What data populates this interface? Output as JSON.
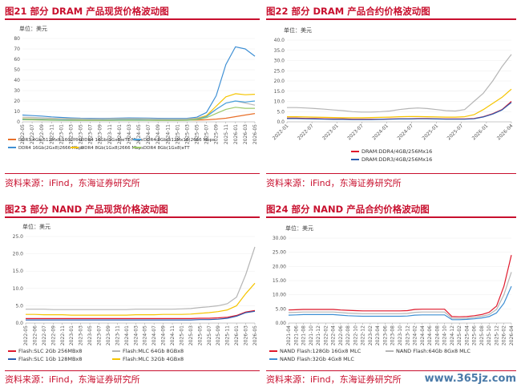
{
  "panels": [
    {
      "title": "图21 部分 DRAM 产品现货价格波动图",
      "source": "资料来源：iFind，东海证券研究所",
      "chart_data": {
        "type": "line",
        "unit": "单位：美元",
        "ylim": [
          0,
          80
        ],
        "yticks": [
          "0",
          "10",
          "20",
          "30",
          "40",
          "50",
          "60",
          "70",
          "80"
        ],
        "xticks": [
          "2022-05",
          "2022-07",
          "2022-09",
          "2022-11",
          "2023-01",
          "2023-03",
          "2023-05",
          "2023-07",
          "2023-09",
          "2023-11",
          "2024-01",
          "2024-03",
          "2024-05",
          "2024-07",
          "2024-09",
          "2024-11",
          "2025-01",
          "2025-03",
          "2025-05",
          "2025-07",
          "2025-09",
          "2025-11",
          "2026-01",
          "2026-03",
          "2026-05"
        ],
        "series": [
          {
            "name": "DDR3 4Gb 512Mx8 1600MHz",
            "color": "#e8702a",
            "values": [
              2.2,
              2.0,
              1.9,
              1.8,
              1.7,
              1.6,
              1.6,
              1.5,
              1.5,
              1.5,
              1.6,
              1.6,
              1.6,
              1.6,
              1.5,
              1.5,
              1.5,
              1.6,
              1.7,
              2.0,
              2.6,
              3.5,
              5.0,
              6.5,
              8.0
            ]
          },
          {
            "name": "DDR4 16Gb(2Gx8)2666 Mbps",
            "color": "#3e8fd4",
            "values": [
              6.5,
              6.0,
              5.5,
              4.8,
              4.2,
              3.8,
              3.5,
              3.4,
              3.3,
              3.4,
              3.6,
              3.8,
              3.7,
              3.6,
              3.4,
              3.3,
              3.3,
              3.4,
              4.5,
              9.0,
              25.0,
              55.0,
              72.0,
              70.0,
              63.0
            ]
          },
          {
            "name": "DDR4 16Gb(1Gx8)eTT Mbps",
            "color": "#b8b8b8",
            "values": [
              4.5,
              4.2,
              3.9,
              3.5,
              3.2,
              3.0,
              2.9,
              2.8,
              2.8,
              2.9,
              3.0,
              3.1,
              3.0,
              2.9,
              2.8,
              2.7,
              2.7,
              2.8,
              3.5,
              6.0,
              12.0,
              18.0,
              20.0,
              18.0,
              16.0
            ]
          },
          {
            "name": "DDR4 8Gb(1Gx8)2666 Mbps",
            "color": "#f5c400",
            "values": [
              3.0,
              2.8,
              2.6,
              2.3,
              2.1,
              2.0,
              1.9,
              1.8,
              1.8,
              1.9,
              2.0,
              2.1,
              2.0,
              1.9,
              1.8,
              1.8,
              1.8,
              1.9,
              2.8,
              6.0,
              15.0,
              24.0,
              27.0,
              26.0,
              26.5
            ]
          },
          {
            "name": "DDR4 8Gb(512Mx16)2666 Mbps",
            "color": "#4aa3df",
            "values": [
              2.6,
              2.5,
              2.3,
              2.1,
              1.9,
              1.8,
              1.7,
              1.7,
              1.7,
              1.8,
              1.9,
              2.0,
              1.9,
              1.8,
              1.7,
              1.7,
              1.7,
              1.8,
              2.5,
              5.0,
              12.0,
              18.0,
              20.0,
              19.0,
              20.0
            ]
          },
          {
            "name": "DDR4 8Gb(1Gx8)eTT",
            "color": "#9cc86a",
            "values": [
              2.0,
              1.9,
              1.7,
              1.5,
              1.4,
              1.3,
              1.3,
              1.3,
              1.3,
              1.3,
              1.4,
              1.5,
              1.4,
              1.4,
              1.3,
              1.3,
              1.3,
              1.4,
              2.0,
              4.0,
              8.0,
              12.0,
              14.0,
              13.0,
              13.0
            ]
          }
        ]
      }
    },
    {
      "title": "图22 部分 DRAM 产品合约价格波动图",
      "source": "资料来源：iFind，东海证券研究所",
      "chart_data": {
        "type": "line",
        "unit": "单位：美元",
        "ylim": [
          0,
          40
        ],
        "yticks": [
          "0.0",
          "5.0",
          "10.0",
          "15.0",
          "20.0",
          "25.0",
          "30.0",
          "35.0",
          "40.0"
        ],
        "xticks": [
          "2022-01",
          "2022-07",
          "2023-01",
          "2023-07",
          "2024-01",
          "2024-07",
          "2025-01",
          "2025-07",
          "2026-01",
          "2026-04"
        ],
        "series": [
          {
            "name": "DRAM:DDR4/4GB/256Mx16",
            "color": "#e0192c",
            "values": [
              1.8,
              1.8,
              1.7,
              1.6,
              1.5,
              1.4,
              1.4,
              1.3,
              1.3,
              1.3,
              1.3,
              1.4,
              1.5,
              1.5,
              1.6,
              1.6,
              1.5,
              1.4,
              1.4,
              1.4,
              1.6,
              2.5,
              4.0,
              6.0,
              10.0
            ]
          },
          {
            "name": "DRAM:DDR3/4GB/256Mx16",
            "color": "#2a5db0",
            "values": [
              1.6,
              1.6,
              1.5,
              1.4,
              1.3,
              1.2,
              1.2,
              1.1,
              1.1,
              1.1,
              1.2,
              1.3,
              1.4,
              1.4,
              1.5,
              1.5,
              1.4,
              1.3,
              1.3,
              1.3,
              1.5,
              2.4,
              3.8,
              5.8,
              9.5
            ]
          },
          {
            "name": "",
            "color": "#f5c400",
            "values": [
              2.5,
              2.5,
              2.4,
              2.3,
              2.2,
              2.1,
              2.0,
              2.0,
              2.0,
              2.1,
              2.2,
              2.3,
              2.5,
              2.6,
              2.6,
              2.5,
              2.4,
              2.3,
              2.3,
              2.5,
              3.5,
              6.0,
              9.0,
              12.0,
              16.0
            ]
          },
          {
            "name": "",
            "color": "#b5b5b5",
            "values": [
              7.0,
              7.0,
              6.8,
              6.5,
              6.2,
              5.8,
              5.5,
              5.0,
              4.8,
              4.8,
              5.0,
              5.3,
              6.0,
              6.5,
              6.8,
              6.5,
              6.0,
              5.5,
              5.3,
              6.0,
              10.0,
              14.0,
              20.0,
              27.0,
              33.0
            ]
          }
        ]
      }
    },
    {
      "title": "图23 部分 NAND 产品现货价格波动图",
      "source": "资料来源：iFind，东海证券研究所",
      "chart_data": {
        "type": "line",
        "unit": "单位：美元",
        "ylim": [
          0,
          25
        ],
        "yticks": [
          "0.0",
          "5.0",
          "10.0",
          "15.0",
          "20.0",
          "25.0"
        ],
        "xticks": [
          "2022-05",
          "2022-06",
          "2022-07",
          "2022-09",
          "2022-11",
          "2023-01",
          "2023-03",
          "2023-05",
          "2023-07",
          "2023-09",
          "2023-11",
          "2024-01",
          "2024-03",
          "2024-05",
          "2024-07",
          "2024-09",
          "2024-11",
          "2025-01",
          "2025-03",
          "2025-05",
          "2025-07",
          "2025-09",
          "2025-11",
          "2026-01",
          "2026-03",
          "2026-05"
        ],
        "series": [
          {
            "name": "Flash:SLC 2Gb 256MBx8",
            "color": "#e0192c",
            "values": [
              1.3,
              1.3,
              1.3,
              1.3,
              1.3,
              1.3,
              1.3,
              1.3,
              1.3,
              1.3,
              1.3,
              1.3,
              1.3,
              1.3,
              1.3,
              1.3,
              1.3,
              1.3,
              1.3,
              1.4,
              1.4,
              1.5,
              1.7,
              2.2,
              3.2,
              3.6
            ]
          },
          {
            "name": "Flash:SLC 1Gb 128MBx8",
            "color": "#2a5db0",
            "values": [
              0.9,
              0.9,
              0.9,
              0.9,
              0.9,
              0.9,
              0.9,
              0.9,
              0.9,
              0.9,
              0.9,
              0.9,
              0.9,
              0.9,
              0.9,
              0.9,
              0.9,
              0.9,
              0.9,
              1.0,
              1.0,
              1.1,
              1.4,
              2.0,
              3.0,
              3.4
            ]
          },
          {
            "name": "Flash:MLC 64Gb 8GBx8",
            "color": "#b5b5b5",
            "values": [
              4.0,
              4.0,
              4.0,
              3.9,
              3.9,
              3.9,
              3.9,
              3.9,
              3.9,
              3.9,
              3.9,
              3.9,
              4.0,
              4.0,
              4.0,
              4.0,
              4.0,
              4.1,
              4.2,
              4.5,
              4.7,
              5.0,
              5.6,
              7.5,
              14.0,
              22.0
            ]
          },
          {
            "name": "Flash:MLC 32Gb 4GBx8",
            "color": "#f5c400",
            "values": [
              2.5,
              2.5,
              2.4,
              2.4,
              2.4,
              2.3,
              2.3,
              2.3,
              2.3,
              2.3,
              2.3,
              2.3,
              2.4,
              2.4,
              2.4,
              2.5,
              2.5,
              2.5,
              2.6,
              2.8,
              3.0,
              3.3,
              3.8,
              5.0,
              8.5,
              11.5
            ]
          }
        ]
      }
    },
    {
      "title": "图24 部分 NAND 产品合约价格波动图",
      "source": "资料来源：iFind，东海证券研究所",
      "chart_data": {
        "type": "line",
        "unit": "单位：美元",
        "ylim": [
          0,
          30
        ],
        "yticks": [
          "0.00",
          "5.00",
          "10.00",
          "15.00",
          "20.00",
          "25.00",
          "30.00"
        ],
        "xticks": [
          "2021-04",
          "2021-06",
          "2021-08",
          "2021-10",
          "2021-12",
          "2022-02",
          "2022-04",
          "2022-06",
          "2022-08",
          "2022-10",
          "2022-12",
          "2023-02",
          "2023-04",
          "2023-06",
          "2023-08",
          "2023-10",
          "2023-12",
          "2024-02",
          "2024-04",
          "2024-06",
          "2024-08",
          "2024-10",
          "2024-12",
          "2025-02",
          "2025-04",
          "2025-06",
          "2025-08",
          "2025-10",
          "2025-12",
          "2026-02",
          "2026-04"
        ],
        "series": [
          {
            "name": "NAND Flash:128Gb 16Gx8 MLC",
            "color": "#e0192c",
            "values": [
              4.6,
              4.7,
              4.8,
              4.8,
              4.8,
              4.8,
              4.8,
              4.6,
              4.5,
              4.4,
              4.3,
              4.3,
              4.3,
              4.3,
              4.3,
              4.3,
              4.4,
              4.8,
              4.9,
              4.9,
              4.9,
              4.9,
              2.3,
              2.2,
              2.3,
              2.6,
              3.0,
              3.8,
              6.0,
              13.0,
              24.0
            ]
          },
          {
            "name": "NAND Flash:32Gb 4Gx8 MLC",
            "color": "#3e8fd4",
            "values": [
              2.8,
              2.9,
              3.0,
              3.0,
              3.0,
              3.0,
              3.0,
              2.8,
              2.6,
              2.5,
              2.4,
              2.4,
              2.4,
              2.4,
              2.4,
              2.4,
              2.5,
              2.8,
              2.9,
              2.9,
              2.9,
              2.9,
              1.2,
              1.2,
              1.3,
              1.5,
              1.8,
              2.3,
              3.6,
              7.0,
              13.0
            ]
          },
          {
            "name": "NAND Flash:64Gb 8Gx8 MLC",
            "color": "#b5b5b5",
            "values": [
              3.7,
              3.8,
              3.9,
              3.9,
              3.9,
              3.9,
              3.9,
              3.7,
              3.5,
              3.4,
              3.3,
              3.3,
              3.3,
              3.3,
              3.3,
              3.3,
              3.4,
              3.8,
              3.9,
              3.9,
              3.9,
              3.9,
              1.7,
              1.6,
              1.7,
              2.0,
              2.4,
              3.0,
              4.8,
              10.0,
              18.0
            ]
          }
        ]
      }
    }
  ],
  "watermark": "www.365jz.com"
}
